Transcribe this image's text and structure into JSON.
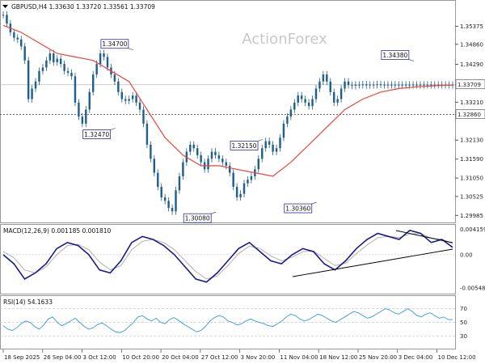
{
  "header": {
    "symbol_line": "GBPUSD,H4  1.33630 1.33720 1.33561 1.33709",
    "watermark": "ActionForex"
  },
  "colors": {
    "price_bars": "#1f5f8b",
    "sma": "#e8473a",
    "macd_line": "#1a1a8c",
    "signal_line": "#b0b0b0",
    "rsi_line": "#3399dd",
    "trendline": "#000000",
    "label_border": "#2a2a9c"
  },
  "chart_data": [
    {
      "type": "line",
      "panel": "price",
      "title": "GBPUSD,H4",
      "ylim": [
        1.299,
        1.358
      ],
      "y_ticks": [
        "1.35375",
        "1.34860",
        "1.34290",
        "1.33709",
        "1.33210",
        "1.32860",
        "1.32130",
        "1.31590",
        "1.31050",
        "1.30525",
        "1.29985"
      ],
      "x_ticks": [
        "18 Sep 2025",
        "26 Sep 04:00",
        "3 Oct 12:00",
        "10 Oct 20:00",
        "20 Oct 04:00",
        "27 Oct 12:00",
        "3 Nov 20:00",
        "11 Nov 04:00",
        "18 Nov 12:00",
        "25 Nov 20:00",
        "3 Dec 04:00",
        "10 Dec 12:00"
      ],
      "series": [
        {
          "kind": "close_bars",
          "x": [
            0,
            2,
            4,
            6,
            8,
            10,
            12,
            14,
            16,
            18,
            20,
            22,
            24,
            26,
            28,
            30,
            32,
            34,
            36,
            38,
            40,
            42,
            44,
            46,
            48,
            50,
            52,
            54,
            56,
            58,
            60,
            62,
            64,
            66,
            68,
            70,
            72,
            74,
            76,
            78,
            80,
            82,
            84,
            86,
            88,
            90,
            92,
            94,
            96,
            98,
            100,
            102,
            104,
            106,
            108,
            110,
            112,
            114,
            116,
            118,
            120,
            122,
            124,
            126,
            128,
            130,
            132,
            134,
            136,
            138,
            140,
            142,
            144,
            146,
            148,
            150,
            152,
            154,
            156,
            158,
            160,
            162,
            164,
            166,
            168,
            170,
            172,
            174,
            176,
            178,
            180,
            182,
            184,
            186,
            188,
            190,
            192,
            194,
            196,
            198,
            200,
            202,
            204,
            206,
            208,
            210,
            212,
            214,
            216,
            218,
            220,
            222,
            224,
            226,
            228,
            230,
            232,
            234,
            236,
            238,
            240,
            242,
            244,
            246,
            248,
            250
          ],
          "values": [
            1.357,
            1.3545,
            1.352,
            1.3505,
            1.35,
            1.348,
            1.344,
            1.333,
            1.336,
            1.338,
            1.341,
            1.342,
            1.344,
            1.346,
            1.3435,
            1.3445,
            1.343,
            1.341,
            1.3405,
            1.3395,
            1.332,
            1.328,
            1.326,
            1.33,
            1.335,
            1.34,
            1.343,
            1.346,
            1.345,
            1.342,
            1.34,
            1.338,
            1.335,
            1.333,
            1.3325,
            1.333,
            1.334,
            1.332,
            1.33,
            1.326,
            1.32,
            1.316,
            1.312,
            1.308,
            1.305,
            1.304,
            1.302,
            1.301,
            1.307,
            1.311,
            1.315,
            1.318,
            1.32,
            1.319,
            1.317,
            1.315,
            1.313,
            1.316,
            1.318,
            1.317,
            1.316,
            1.315,
            1.314,
            1.312,
            1.308,
            1.305,
            1.306,
            1.309,
            1.31,
            1.311,
            1.313,
            1.316,
            1.319,
            1.321,
            1.32,
            1.318,
            1.319,
            1.322,
            1.326,
            1.328,
            1.33,
            1.332,
            1.334,
            1.333,
            1.332,
            1.331,
            1.333,
            1.336,
            1.338,
            1.34,
            1.338,
            1.335,
            1.332,
            1.333,
            1.336,
            1.338,
            1.337,
            1.3368,
            1.3371,
            1.337,
            1.3372,
            1.3369,
            1.3371,
            1.337,
            1.3372,
            1.3371,
            1.337,
            1.3371,
            1.337,
            1.3371,
            1.337,
            1.3371,
            1.337,
            1.3371,
            1.337,
            1.3371,
            1.337,
            1.3371,
            1.337,
            1.3371,
            1.337,
            1.3371,
            1.337,
            1.3371,
            1.337,
            1.3371
          ]
        },
        {
          "kind": "sma",
          "x": [
            0,
            10,
            20,
            30,
            40,
            50,
            60,
            70,
            80,
            90,
            100,
            110,
            120,
            130,
            140,
            150,
            160,
            170,
            180,
            190,
            200,
            210,
            220,
            230,
            240,
            250
          ],
          "values": [
            1.354,
            1.352,
            1.349,
            1.346,
            1.345,
            1.344,
            1.341,
            1.338,
            1.33,
            1.322,
            1.317,
            1.314,
            1.314,
            1.313,
            1.312,
            1.311,
            1.315,
            1.32,
            1.325,
            1.33,
            1.333,
            1.335,
            1.336,
            1.3365,
            1.3368,
            1.337
          ]
        }
      ],
      "price_labels": [
        {
          "text": "1.34700",
          "value": 1.347,
          "x": 62
        },
        {
          "text": "1.32470",
          "value": 1.3247,
          "x": 52
        },
        {
          "text": "1.32150",
          "value": 1.3215,
          "x": 134
        },
        {
          "text": "1.30080",
          "value": 1.3008,
          "x": 108
        },
        {
          "text": "1.30360",
          "value": 1.3036,
          "x": 164
        },
        {
          "text": "1.34380",
          "value": 1.3438,
          "x": 218
        }
      ],
      "last_price_tag": "1.33709",
      "ref_level_tag": "1.32860"
    },
    {
      "type": "line",
      "panel": "macd",
      "title": "MACD(12,26,9) 0.001185 0.001810",
      "ylim": [
        -0.006,
        0.0045
      ],
      "y_ticks": [
        "0.004159",
        "0.00",
        "-0.005485"
      ],
      "series": [
        {
          "name": "MACD",
          "values": [
            0.0,
            -0.0015,
            -0.004,
            -0.003,
            -0.0015,
            0.001,
            0.002,
            0.0015,
            0.0,
            -0.0025,
            -0.003,
            -0.001,
            0.002,
            0.003,
            0.0025,
            0.0015,
            0.0,
            -0.002,
            -0.004,
            -0.0045,
            -0.003,
            -0.001,
            0.001,
            0.002,
            0.0005,
            -0.001,
            -0.0015,
            0.0,
            0.001,
            0.0005,
            -0.0015,
            -0.0025,
            -0.001,
            0.001,
            0.0025,
            0.0035,
            0.003,
            0.0025,
            0.004,
            0.0035,
            0.002,
            0.0025,
            0.0012
          ]
        },
        {
          "name": "Signal",
          "values": [
            0.0005,
            -0.0005,
            -0.0025,
            -0.003,
            -0.002,
            0.0,
            0.0015,
            0.0017,
            0.0008,
            -0.0012,
            -0.0025,
            -0.0018,
            0.0008,
            0.0022,
            0.0025,
            0.002,
            0.0008,
            -0.001,
            -0.0028,
            -0.004,
            -0.0035,
            -0.0018,
            0.0002,
            0.0014,
            0.001,
            -0.0002,
            -0.001,
            -0.0004,
            0.0005,
            0.0006,
            -0.0006,
            -0.0018,
            -0.0014,
            0.0002,
            0.0016,
            0.0028,
            0.003,
            0.0028,
            0.0034,
            0.0035,
            0.0027,
            0.0025,
            0.0018
          ]
        }
      ]
    },
    {
      "type": "line",
      "panel": "rsi",
      "title": "RSI(14) 54.1633",
      "ylim": [
        15,
        85
      ],
      "y_ticks": [
        "70",
        "50",
        "30"
      ],
      "series": [
        {
          "name": "RSI",
          "values": [
            45,
            40,
            38,
            42,
            48,
            52,
            50,
            44,
            40,
            46,
            55,
            58,
            50,
            45,
            48,
            52,
            56,
            50,
            44,
            40,
            42,
            47,
            49,
            45,
            40,
            36,
            35,
            38,
            44,
            50,
            58,
            60,
            55,
            52,
            56,
            50,
            48,
            54,
            57,
            53,
            48,
            44,
            40,
            36,
            38,
            44,
            52,
            57,
            60,
            58,
            52,
            50,
            46,
            48,
            52,
            55,
            52,
            50,
            48,
            45,
            44,
            48,
            52,
            58,
            62,
            60,
            55,
            52,
            54,
            58,
            62,
            60,
            56,
            52,
            50,
            54,
            58,
            62,
            66,
            64,
            60,
            56,
            58,
            62,
            66,
            70,
            68,
            64,
            62,
            66,
            70,
            66,
            60,
            58,
            62,
            64,
            60,
            56,
            58,
            54,
            54
          ]
        }
      ]
    }
  ]
}
